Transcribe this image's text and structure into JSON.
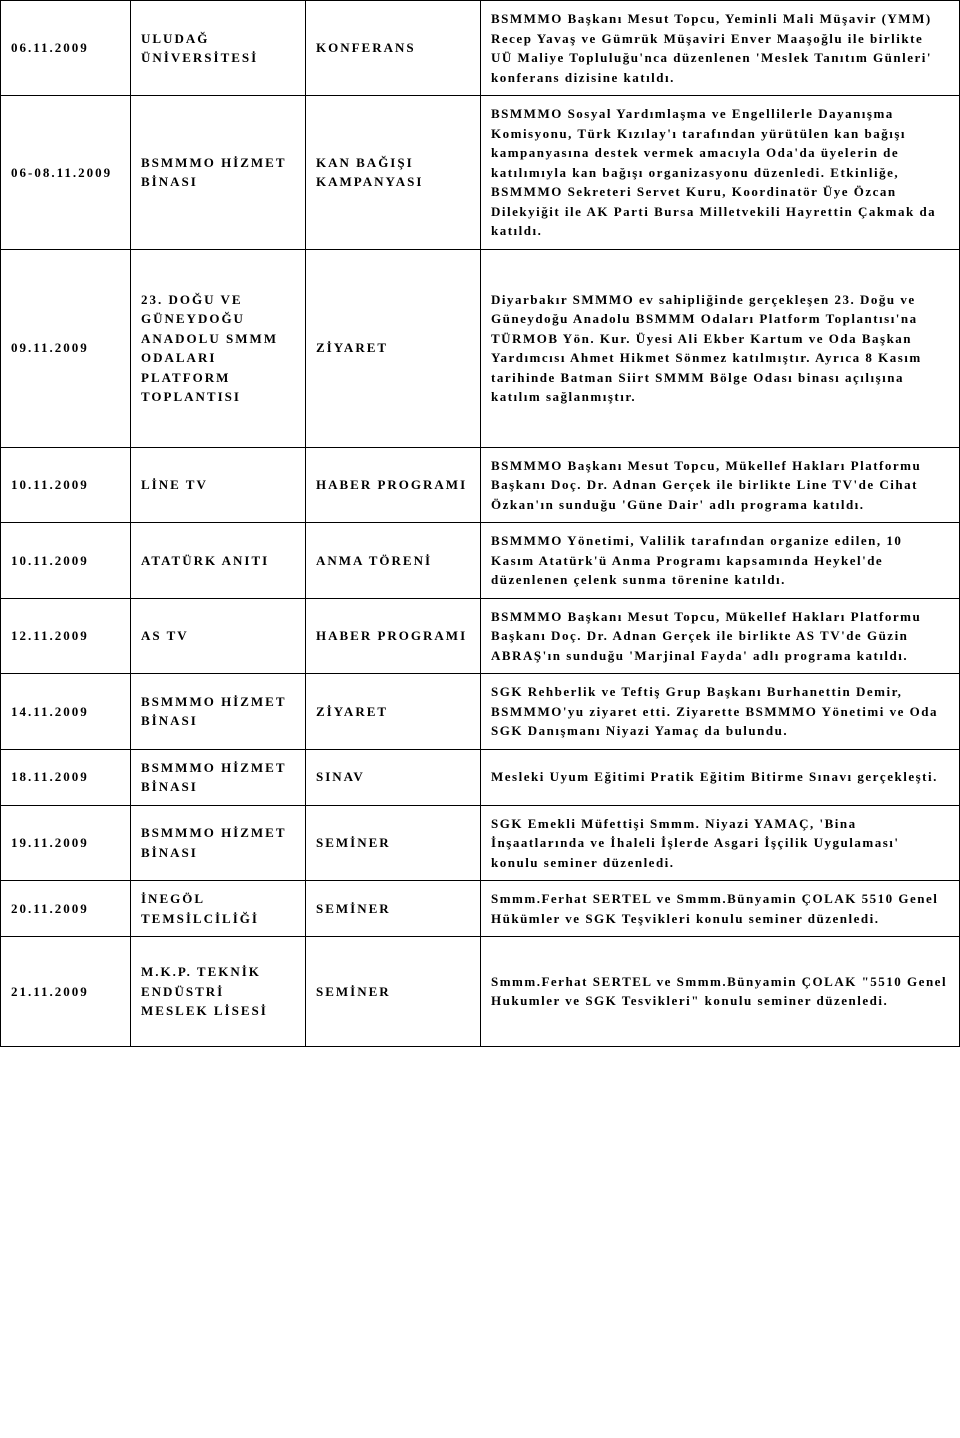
{
  "rows": [
    {
      "date": "06.11.2009",
      "location": "ULUDAĞ ÜNİVERSİTESİ",
      "type": "KONFERANS",
      "description": "BSMMMO Başkanı Mesut Topcu, Yeminli Mali Müşavir (YMM) Recep Yavaş ve Gümrük Müşaviri Enver Maaşoğlu ile birlikte UÜ Maliye Topluluğu'nca düzenlenen 'Meslek Tanıtım Günleri' konferans dizisine katıldı."
    },
    {
      "date": "06-08.11.2009",
      "location": "BSMMMO HİZMET BİNASI",
      "type": "KAN BAĞIŞI KAMPANYASI",
      "description": "BSMMMO Sosyal Yardımlaşma ve Engellilerle Dayanışma Komisyonu, Türk Kızılay'ı tarafından yürütülen kan bağışı kampanyasına destek vermek amacıyla Oda'da üyelerin de katılımıyla kan bağışı organizasyonu düzenledi. Etkinliğe, BSMMMO Sekreteri Servet Kuru, Koordinatör Üye Özcan Dilekyiğit ile AK Parti Bursa Milletvekili Hayrettin Çakmak da katıldı."
    },
    {
      "date": "09.11.2009",
      "location": "23. DOĞU VE GÜNEYDOĞU ANADOLU SMMM ODALARI PLATFORM TOPLANTISI",
      "type": "ZİYARET",
      "description": "Diyarbakır SMMMO ev sahipliğinde gerçekleşen 23. Doğu ve Güneydoğu Anadolu BSMMM Odaları Platform Toplantısı'na TÜRMOB Yön. Kur. Üyesi Ali Ekber Kartum ve Oda Başkan Yardımcısı Ahmet Hikmet Sönmez katılmıştır. Ayrıca 8 Kasım tarihinde Batman Siirt SMMM Bölge Odası binası açılışına katılım sağlanmıştır."
    },
    {
      "date": "10.11.2009",
      "location": "LİNE TV",
      "type": "HABER PROGRAMI",
      "description": "BSMMMO Başkanı Mesut Topcu, Mükellef Hakları Platformu Başkanı Doç. Dr. Adnan Gerçek ile birlikte Line TV'de Cihat Özkan'ın sunduğu 'Güne Dair' adlı programa katıldı."
    },
    {
      "date": "10.11.2009",
      "location": "ATATÜRK ANITI",
      "type": "ANMA TÖRENİ",
      "description": "BSMMMO Yönetimi, Valilik tarafından organize edilen, 10 Kasım Atatürk'ü Anma Programı kapsamında Heykel'de düzenlenen çelenk sunma törenine katıldı."
    },
    {
      "date": "12.11.2009",
      "location": "AS TV",
      "type": "HABER PROGRAMI",
      "description": "BSMMMO Başkanı Mesut Topcu, Mükellef Hakları Platformu Başkanı Doç. Dr. Adnan Gerçek ile birlikte AS TV'de Güzin ABRAŞ'ın sunduğu 'Marjinal Fayda' adlı programa katıldı."
    },
    {
      "date": "14.11.2009",
      "location": "BSMMMO HİZMET BİNASI",
      "type": "ZİYARET",
      "description": "SGK Rehberlik ve Teftiş Grup Başkanı Burhanettin Demir, BSMMMO'yu ziyaret etti. Ziyarette BSMMMO Yönetimi ve Oda SGK Danışmanı Niyazi Yamaç da bulundu."
    },
    {
      "date": "18.11.2009",
      "location": "BSMMMO HİZMET BİNASI",
      "type": "SINAV",
      "description": "Mesleki Uyum Eğitimi Pratik Eğitim Bitirme Sınavı gerçekleşti."
    },
    {
      "date": "19.11.2009",
      "location": "BSMMMO HİZMET BİNASI",
      "type": "SEMİNER",
      "description": "SGK Emekli Müfettişi Smmm. Niyazi YAMAÇ, 'Bina İnşaatlarında ve İhaleli İşlerde Asgari İşçilik Uygulaması' konulu seminer düzenledi."
    },
    {
      "date": "20.11.2009",
      "location": "İNEGÖL TEMSİLCİLİĞİ",
      "type": "SEMİNER",
      "description": "Smmm.Ferhat SERTEL ve Smmm.Bünyamin ÇOLAK 5510 Genel Hükümler ve SGK Teşvikleri konulu seminer düzenledi."
    },
    {
      "date": "21.11.2009",
      "location": "M.K.P. TEKNİK ENDÜSTRİ MESLEK LİSESİ",
      "type": "SEMİNER",
      "description": "Smmm.Ferhat SERTEL ve Smmm.Bünyamin ÇOLAK \"5510 Genel Hukumler ve SGK Tesvikleri\" konulu seminer düzenledi."
    }
  ]
}
